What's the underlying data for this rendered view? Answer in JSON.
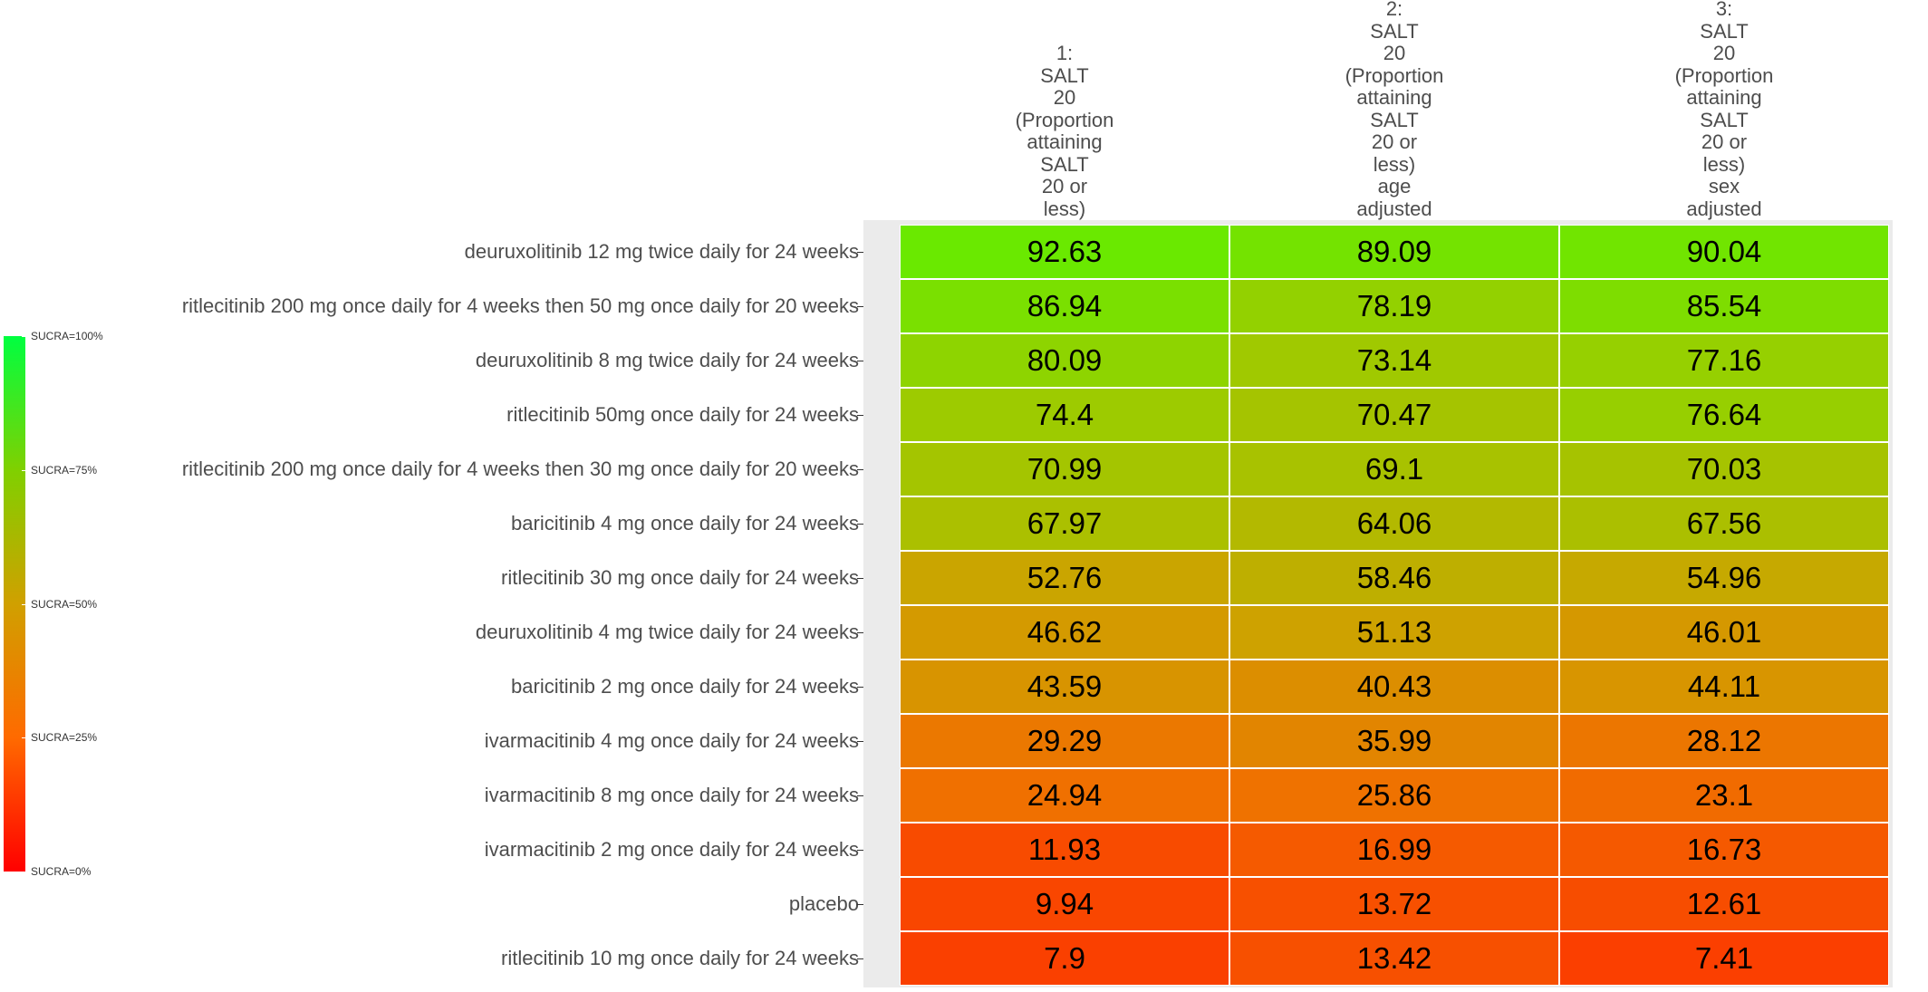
{
  "chart_data": {
    "type": "heatmap",
    "columns": [
      [
        "1:",
        "SALT",
        "20",
        "(Proportion",
        "attaining",
        "SALT",
        "20 or",
        "less)"
      ],
      [
        "2:",
        "SALT",
        "20",
        "(Proportion",
        "attaining",
        "SALT",
        "20 or",
        "less)",
        "age",
        "adjusted"
      ],
      [
        "3:",
        "SALT",
        "20",
        "(Proportion",
        "attaining",
        "SALT",
        "20 or",
        "less)",
        "sex",
        "adjusted"
      ]
    ],
    "rows": [
      "deuruxolitinib 12 mg twice daily for 24 weeks",
      "ritlecitinib 200 mg once daily for 4 weeks then 50 mg once daily for 20 weeks",
      "deuruxolitinib 8 mg twice daily for 24 weeks",
      "ritlecitinib 50mg once daily for 24 weeks",
      "ritlecitinib 200 mg once daily for 4 weeks then 30 mg once daily for 20 weeks",
      "baricitinib 4 mg once daily for 24 weeks",
      "ritlecitinib 30 mg once daily for 24 weeks",
      "deuruxolitinib 4 mg twice daily for 24 weeks",
      "baricitinib 2 mg once daily for 24 weeks",
      "ivarmacitinib 4 mg once daily for 24 weeks",
      "ivarmacitinib 8 mg once daily for 24 weeks",
      "ivarmacitinib 2 mg once daily for 24 weeks",
      "placebo",
      "ritlecitinib 10 mg once daily for 24 weeks"
    ],
    "values": [
      [
        "92.63",
        "89.09",
        "90.04"
      ],
      [
        "86.94",
        "78.19",
        "85.54"
      ],
      [
        "80.09",
        "73.14",
        "77.16"
      ],
      [
        "74.4",
        "70.47",
        "76.64"
      ],
      [
        "70.99",
        "69.1",
        "70.03"
      ],
      [
        "67.97",
        "64.06",
        "67.56"
      ],
      [
        "52.76",
        "58.46",
        "54.96"
      ],
      [
        "46.62",
        "51.13",
        "46.01"
      ],
      [
        "43.59",
        "40.43",
        "44.11"
      ],
      [
        "29.29",
        "35.99",
        "28.12"
      ],
      [
        "24.94",
        "25.86",
        "23.1"
      ],
      [
        "11.93",
        "16.99",
        "16.73"
      ],
      [
        "9.94",
        "13.72",
        "12.61"
      ],
      [
        "7.9",
        "13.42",
        "7.41"
      ]
    ],
    "color_scale": {
      "low": "#ff0000",
      "mid": "#d0a000",
      "high": "#00ff40"
    },
    "legend": {
      "position": "left",
      "labels": [
        "SUCRA=100%",
        "SUCRA=75%",
        "SUCRA=50%",
        "SUCRA=25%",
        "SUCRA=0%"
      ]
    }
  }
}
